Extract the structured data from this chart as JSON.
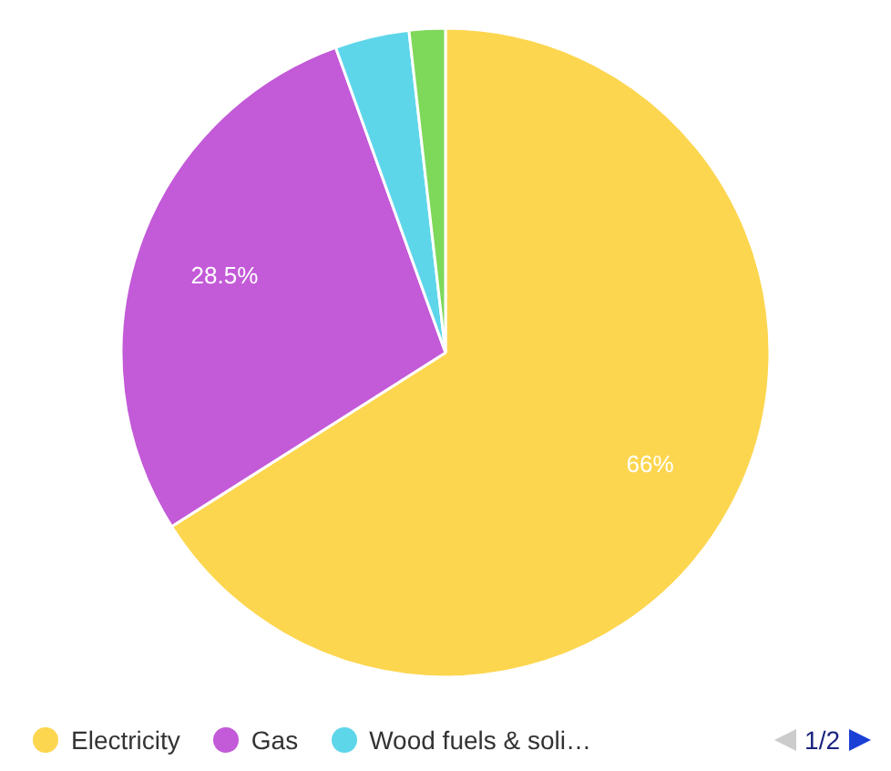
{
  "chart_data": {
    "type": "pie",
    "categories": [
      "Electricity",
      "Gas",
      "Wood fuels & soli…",
      null
    ],
    "values": [
      66,
      28.5,
      3.7,
      1.8
    ],
    "colors": [
      "#fdd650",
      "#c35ad8",
      "#5ed6ea",
      "#7ed85a"
    ],
    "value_labels": [
      "66%",
      "28.5%",
      null,
      null
    ],
    "legend": "bottom",
    "annotations": [
      "1/2"
    ]
  }
}
